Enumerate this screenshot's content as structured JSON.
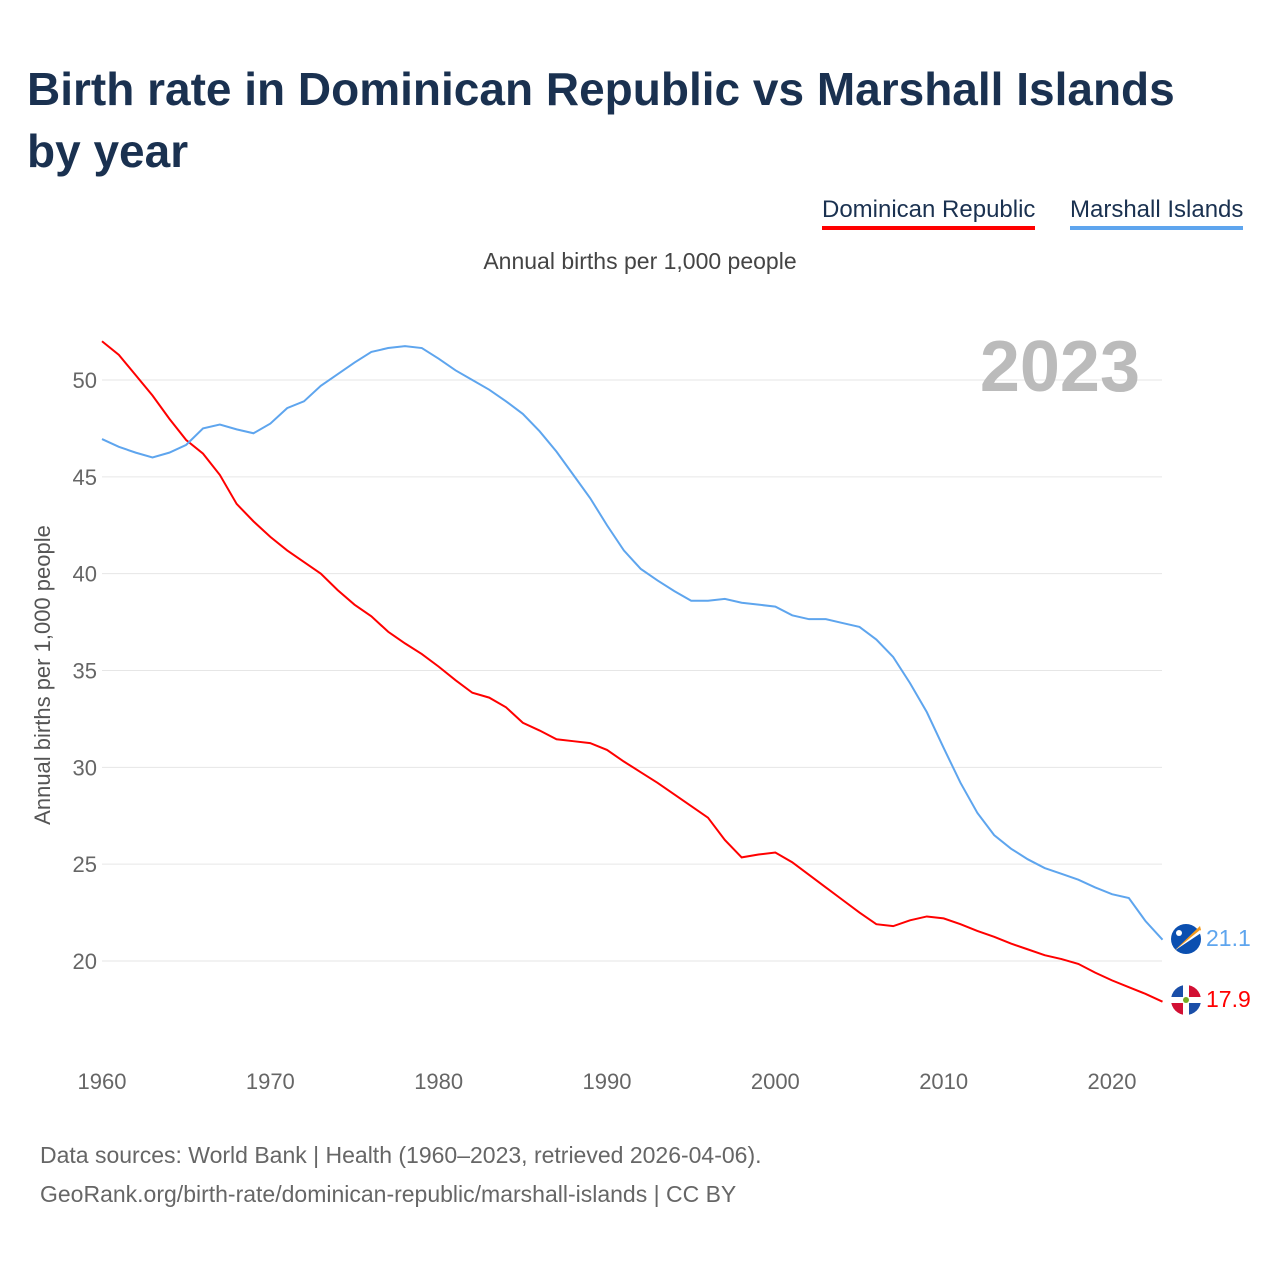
{
  "title": "Birth rate in Dominican Republic vs Marshall Islands by year",
  "footer": {
    "line1": "Data sources: World Bank | Health (1960–2023, retrieved 2026-04-06).",
    "line2": "GeoRank.org/birth-rate/dominican-republic/marshall-islands | CC BY"
  },
  "chart_data": {
    "type": "line",
    "title": "Birth rate in Dominican Republic vs Marshall Islands by year",
    "subtitle": "Annual births per 1,000 people",
    "ylabel": "Annual births per 1,000 people",
    "xlabel": "",
    "year_label": "2023",
    "xlim": [
      1960,
      2023
    ],
    "ylim": [
      15,
      52
    ],
    "yticks": [
      20,
      25,
      30,
      35,
      40,
      45,
      50
    ],
    "xticks": [
      1960,
      1970,
      1980,
      1990,
      2000,
      2010,
      2020
    ],
    "grid": true,
    "legend": "top-right",
    "x": [
      1960,
      1961,
      1962,
      1963,
      1964,
      1965,
      1966,
      1967,
      1968,
      1969,
      1970,
      1971,
      1972,
      1973,
      1974,
      1975,
      1976,
      1977,
      1978,
      1979,
      1980,
      1981,
      1982,
      1983,
      1984,
      1985,
      1986,
      1987,
      1988,
      1989,
      1990,
      1991,
      1992,
      1993,
      1994,
      1995,
      1996,
      1997,
      1998,
      1999,
      2000,
      2001,
      2002,
      2003,
      2004,
      2005,
      2006,
      2007,
      2008,
      2009,
      2010,
      2011,
      2012,
      2013,
      2014,
      2015,
      2016,
      2017,
      2018,
      2019,
      2020,
      2021,
      2022,
      2023
    ],
    "series": [
      {
        "name": "Dominican Republic",
        "color": "#ff0000",
        "end_label": "17.9",
        "values": [
          52.0,
          51.3,
          50.25,
          49.2,
          48.0,
          46.9,
          46.2,
          45.1,
          43.6,
          42.7,
          41.9,
          41.2,
          40.6,
          40.0,
          39.15,
          38.4,
          37.8,
          37.0,
          36.4,
          35.85,
          35.2,
          34.5,
          33.85,
          33.6,
          33.1,
          32.3,
          31.9,
          31.45,
          31.35,
          31.25,
          30.9,
          30.3,
          29.75,
          29.2,
          28.6,
          28.0,
          27.4,
          26.25,
          25.35,
          25.5,
          25.6,
          25.1,
          24.45,
          23.8,
          23.15,
          22.5,
          21.9,
          21.8,
          22.1,
          22.3,
          22.2,
          21.9,
          21.55,
          21.25,
          20.9,
          20.6,
          20.3,
          20.1,
          19.85,
          19.4,
          19.0,
          18.65,
          18.3,
          17.9
        ]
      },
      {
        "name": "Marshall Islands",
        "color": "#5ea5ee",
        "end_label": "21.1",
        "values": [
          46.95,
          46.55,
          46.25,
          46.0,
          46.25,
          46.65,
          47.5,
          47.7,
          47.45,
          47.25,
          47.75,
          48.55,
          48.9,
          49.7,
          50.3,
          50.9,
          51.45,
          51.65,
          51.75,
          51.65,
          51.1,
          50.5,
          50.0,
          49.5,
          48.9,
          48.25,
          47.35,
          46.3,
          45.1,
          43.9,
          42.5,
          41.2,
          40.25,
          39.65,
          39.1,
          38.6,
          38.6,
          38.7,
          38.5,
          38.4,
          38.3,
          37.85,
          37.65,
          37.65,
          37.45,
          37.25,
          36.6,
          35.7,
          34.35,
          32.85,
          31.0,
          29.2,
          27.65,
          26.5,
          25.8,
          25.25,
          24.8,
          24.5,
          24.2,
          23.8,
          23.45,
          23.25,
          22.05,
          21.1
        ]
      }
    ]
  }
}
